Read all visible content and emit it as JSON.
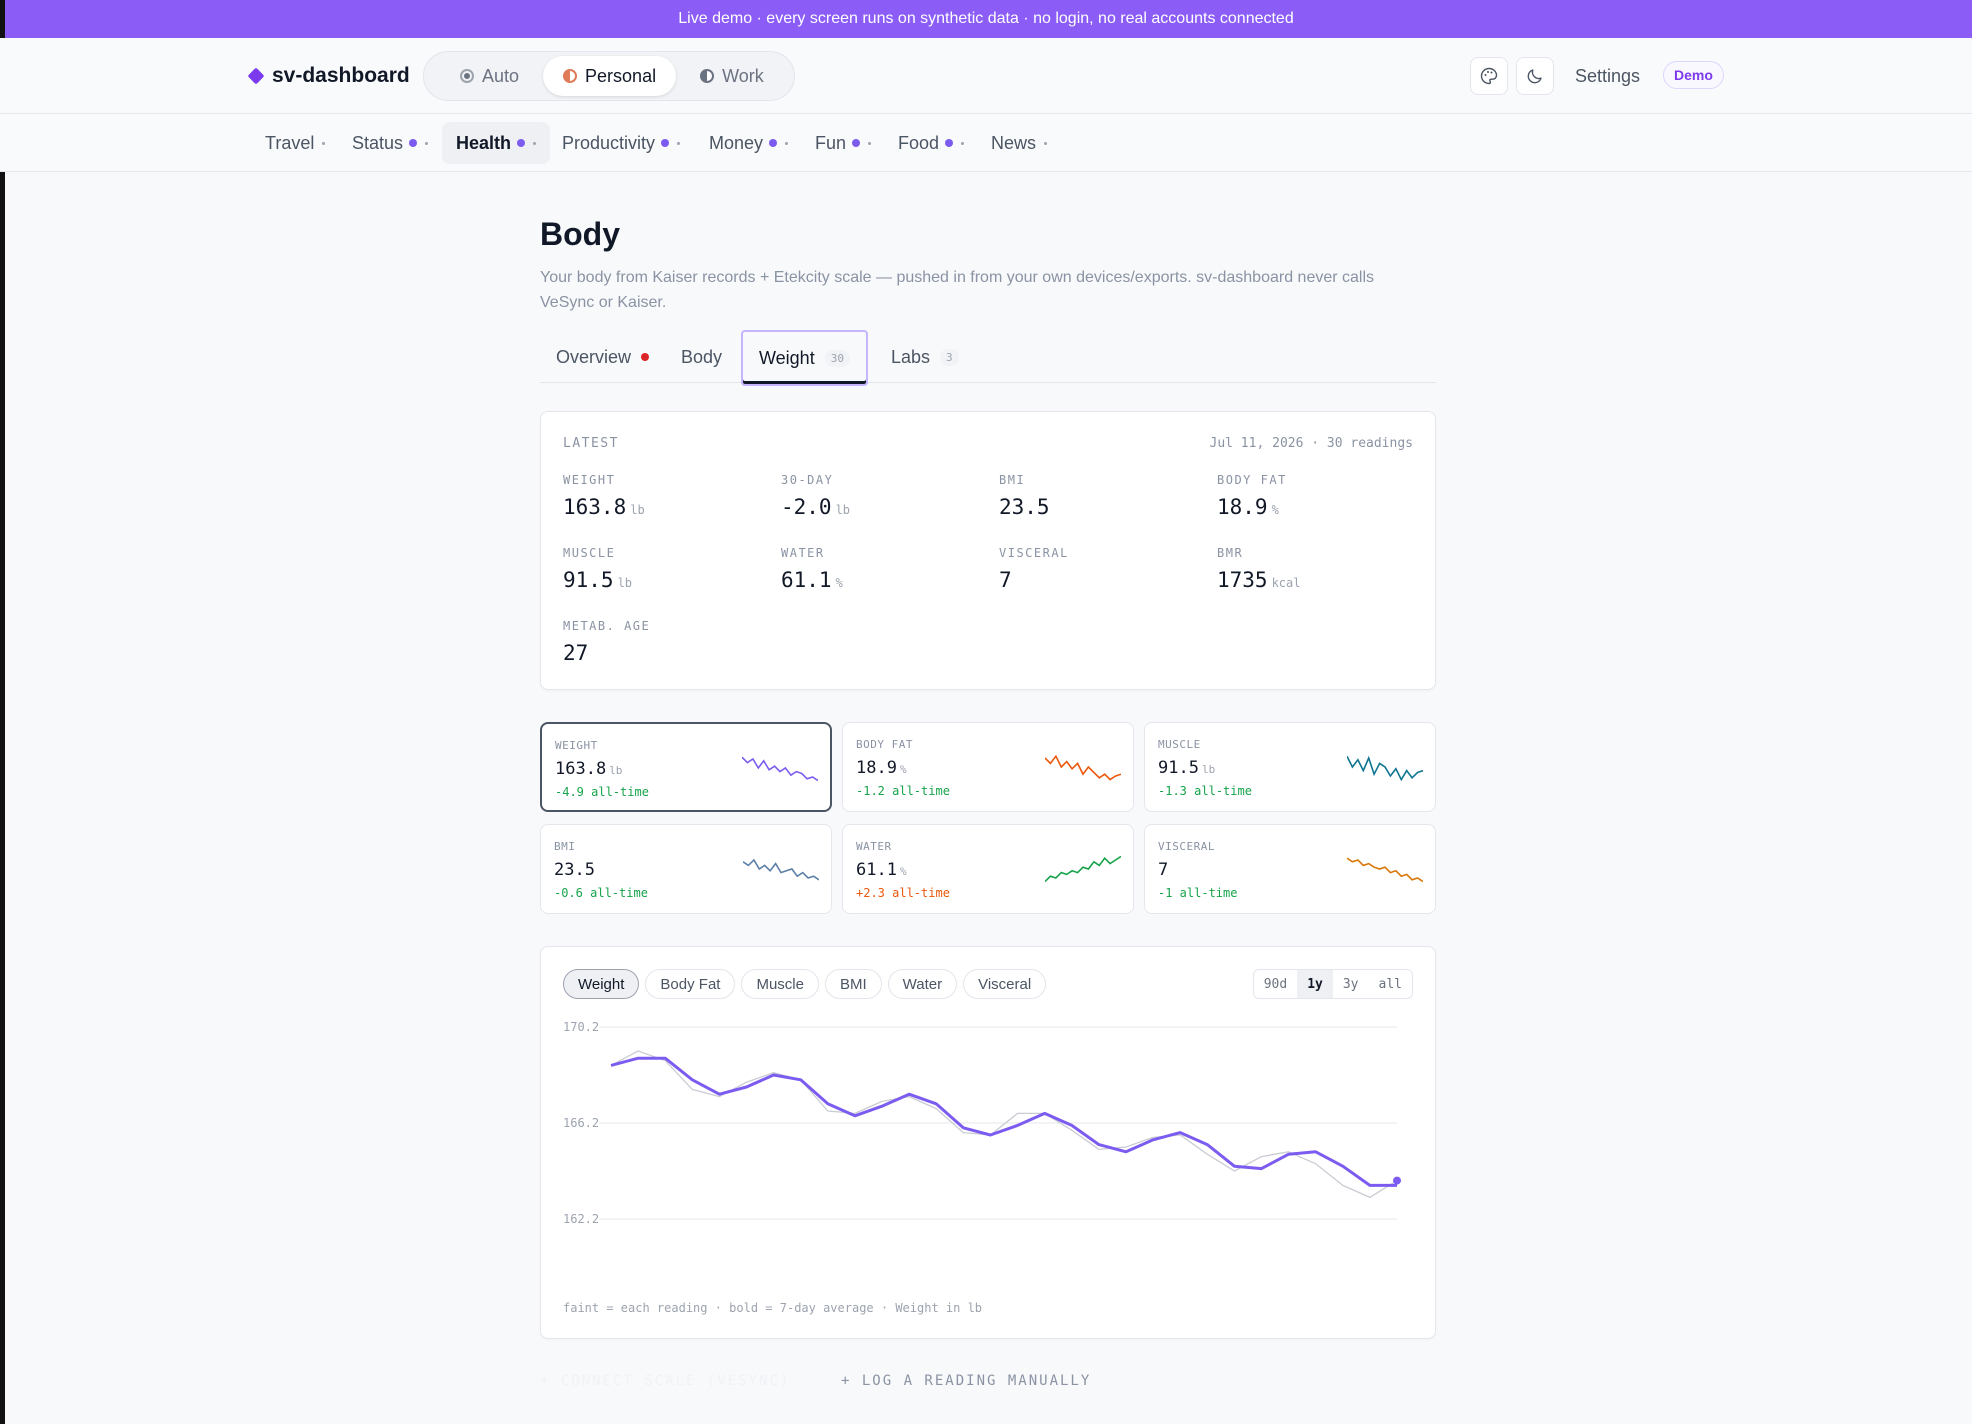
{
  "banner": "Live demo · every screen runs on synthetic data · no login, no real accounts connected",
  "brand": "sv-dashboard",
  "modes": [
    {
      "label": "Auto",
      "icon": "auto-icon"
    },
    {
      "label": "Personal",
      "icon": "personal-icon"
    },
    {
      "label": "Work",
      "icon": "work-icon"
    }
  ],
  "header": {
    "settings": "Settings",
    "demo": "Demo"
  },
  "nav": [
    {
      "label": "Travel",
      "dot": false
    },
    {
      "label": "Status",
      "dot": true
    },
    {
      "label": "Health",
      "dot": true
    },
    {
      "label": "Productivity",
      "dot": true
    },
    {
      "label": "Money",
      "dot": true
    },
    {
      "label": "Fun",
      "dot": true
    },
    {
      "label": "Food",
      "dot": true
    },
    {
      "label": "News",
      "dot": false
    }
  ],
  "page": {
    "title": "Body",
    "subtitle": "Your body from Kaiser records + Etekcity scale — pushed in from your own devices/exports. sv-dashboard never calls VeSync or Kaiser."
  },
  "tabs": [
    {
      "label": "Overview",
      "count": ""
    },
    {
      "label": "Body",
      "count": ""
    },
    {
      "label": "Weight",
      "count": "30"
    },
    {
      "label": "Labs",
      "count": "3"
    }
  ],
  "latest": {
    "label": "LATEST",
    "meta": "Jul 11, 2026 · 30 readings",
    "stats": [
      {
        "label": "WEIGHT",
        "value": "163.8",
        "unit": "lb"
      },
      {
        "label": "30-DAY",
        "value": "-2.0",
        "unit": "lb"
      },
      {
        "label": "BMI",
        "value": "23.5",
        "unit": ""
      },
      {
        "label": "BODY FAT",
        "value": "18.9",
        "unit": "%"
      },
      {
        "label": "MUSCLE",
        "value": "91.5",
        "unit": "lb"
      },
      {
        "label": "WATER",
        "value": "61.1",
        "unit": "%"
      },
      {
        "label": "VISCERAL",
        "value": "7",
        "unit": ""
      },
      {
        "label": "BMR",
        "value": "1735",
        "unit": "kcal"
      },
      {
        "label": "METAB. AGE",
        "value": "27",
        "unit": ""
      }
    ]
  },
  "minis": [
    {
      "label": "WEIGHT",
      "value": "163.8",
      "unit": "lb",
      "delta": "-4.9 all-time",
      "delta_color": "#16a34a",
      "spark_color": "#7c5cf0"
    },
    {
      "label": "BODY FAT",
      "value": "18.9",
      "unit": "%",
      "delta": "-1.2 all-time",
      "delta_color": "#16a34a",
      "spark_color": "#ea580c"
    },
    {
      "label": "MUSCLE",
      "value": "91.5",
      "unit": "lb",
      "delta": "-1.3 all-time",
      "delta_color": "#16a34a",
      "spark_color": "#0e7490"
    },
    {
      "label": "BMI",
      "value": "23.5",
      "unit": "",
      "delta": "-0.6 all-time",
      "delta_color": "#16a34a",
      "spark_color": "#5b7fa6"
    },
    {
      "label": "WATER",
      "value": "61.1",
      "unit": "%",
      "delta": "+2.3 all-time",
      "delta_color": "#ea580c",
      "spark_color": "#16a34a"
    },
    {
      "label": "VISCERAL",
      "value": "7",
      "unit": "",
      "delta": "-1 all-time",
      "delta_color": "#16a34a",
      "spark_color": "#d97706"
    }
  ],
  "chart_controls": {
    "metrics": [
      "Weight",
      "Body Fat",
      "Muscle",
      "BMI",
      "Water",
      "Visceral"
    ],
    "ranges": [
      "90d",
      "1y",
      "3y",
      "all"
    ],
    "footnote": "faint = each reading · bold = 7-day average · Weight in lb"
  },
  "chart_data": {
    "type": "line",
    "ylim": [
      162.2,
      170.2
    ],
    "yticks": [
      "170.2",
      "166.2",
      "162.2"
    ],
    "series": [
      {
        "values": [
          168.6,
          169.2,
          168.8,
          167.6,
          167.3,
          167.9,
          168.3,
          168.0,
          166.7,
          166.6,
          167.1,
          167.3,
          166.8,
          165.8,
          165.7,
          166.6,
          166.6,
          165.9,
          165.1,
          165.2,
          165.6,
          165.7,
          164.9,
          164.2,
          164.8,
          165.0,
          164.5,
          163.6,
          163.1,
          163.8
        ]
      },
      {
        "values": [
          168.6,
          168.9,
          168.9,
          168.0,
          167.4,
          167.7,
          168.2,
          168.0,
          167.0,
          166.5,
          166.9,
          167.4,
          167.0,
          166.0,
          165.7,
          166.1,
          166.6,
          166.1,
          165.3,
          165.0,
          165.5,
          165.8,
          165.3,
          164.4,
          164.3,
          164.9,
          165.0,
          164.4,
          163.6,
          163.6
        ]
      }
    ]
  },
  "actions": {
    "connect": "+ CONNECT SCALE (VESYNC)",
    "log": "+ LOG A READING MANUALLY"
  }
}
